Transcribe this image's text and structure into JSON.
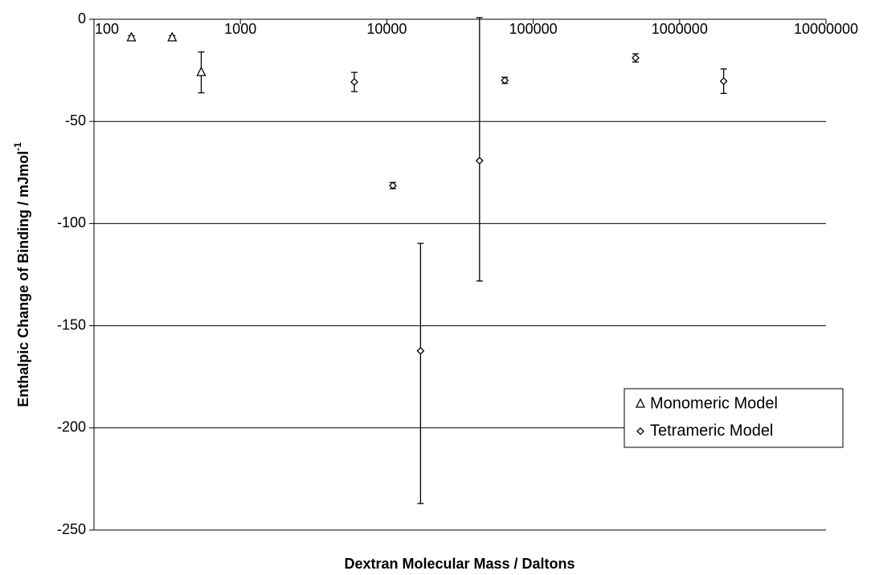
{
  "chart_data": {
    "type": "scatter",
    "xlabel": "Dextran Molecular Mass / Daltons",
    "ylabel": {
      "text": "Enthalpic Change of Binding / mJmol",
      "superscript": "-1"
    },
    "xscale": "log",
    "xlim": [
      100,
      10000000
    ],
    "xticks": [
      100,
      1000,
      10000,
      100000,
      1000000,
      10000000
    ],
    "ylim": [
      -250,
      0
    ],
    "yticks": [
      -250,
      -200,
      -150,
      -100,
      -50,
      0
    ],
    "grid": true,
    "legend": "lower right",
    "series": [
      {
        "name": "Monomeric Model",
        "marker": "triangle",
        "color": "#000000",
        "x": [
          180,
          342,
          540
        ],
        "values": [
          -9,
          -9,
          -26
        ],
        "error_minus": [
          1,
          1,
          10
        ],
        "error_plus": [
          1,
          1,
          10
        ]
      },
      {
        "name": "Tetrameric Model",
        "marker": "diamond",
        "color": "#000000",
        "x": [
          6000,
          11000,
          17000,
          43000,
          64000,
          500000,
          2000000
        ],
        "values": [
          -30.7,
          -81.4,
          -162.3,
          -69.2,
          -29.9,
          -18.9,
          -30.3
        ],
        "error_minus": [
          4.7,
          1.5,
          74.7,
          58.9,
          1.5,
          2,
          6
        ],
        "error_plus": [
          4.7,
          1.5,
          52.6,
          70,
          1.5,
          2,
          6
        ]
      }
    ]
  }
}
